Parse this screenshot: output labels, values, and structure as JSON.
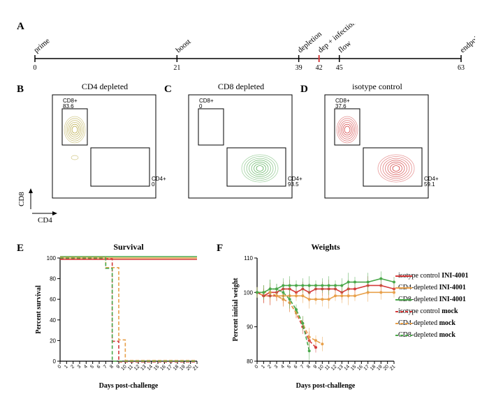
{
  "panelA": {
    "label": "A",
    "timeline": {
      "events": [
        {
          "x": 0,
          "label": "prime"
        },
        {
          "x": 21,
          "label": "boost"
        },
        {
          "x": 39,
          "label": "depletion"
        },
        {
          "x": 42,
          "label": "dep + infection",
          "red": true
        },
        {
          "x": 45,
          "label": "flow"
        },
        {
          "x": 63,
          "label": "endpoint"
        }
      ],
      "min": 0,
      "max": 63
    }
  },
  "panelB": {
    "label": "B",
    "title": "CD4 depleted",
    "cd8_label": "CD8+",
    "cd8_value": "83.6",
    "cd4_label": "CD4+",
    "cd4_value": "0",
    "contour_color": "#b0a030"
  },
  "panelC": {
    "label": "C",
    "title": "CD8 depleted",
    "cd8_label": "CD8+",
    "cd8_value": "0",
    "cd4_label": "CD4+",
    "cd4_value": "93.5",
    "contour_color": "#4aa84a"
  },
  "panelD": {
    "label": "D",
    "title": "isotype control",
    "cd8_label": "CD8+",
    "cd8_value": "37.6",
    "cd4_label": "CD4+",
    "cd4_value": "59.1",
    "contour_color": "#d03030"
  },
  "flow_y_label": "CD8",
  "flow_x_label": "CD4",
  "panelE": {
    "label": "E",
    "title": "Survival",
    "ylabel": "Percent survival",
    "xlabel": "Days post-challenge",
    "ylim": [
      0,
      100
    ],
    "ytick_step": 20,
    "xticks": [
      0,
      1,
      2,
      3,
      4,
      5,
      6,
      7,
      8,
      9,
      10,
      11,
      12,
      13,
      14,
      15,
      16,
      17,
      18,
      19,
      20,
      21
    ],
    "series": [
      {
        "color": "#d43a3a",
        "dash": "solid",
        "data": [
          [
            0,
            100
          ],
          [
            21,
            100
          ]
        ]
      },
      {
        "color": "#e8a04a",
        "dash": "solid",
        "data": [
          [
            0,
            100
          ],
          [
            21,
            100
          ]
        ]
      },
      {
        "color": "#4aa84a",
        "dash": "solid",
        "data": [
          [
            0,
            100
          ],
          [
            21,
            100
          ]
        ]
      },
      {
        "color": "#d43a3a",
        "dash": "dashed",
        "data": [
          [
            0,
            100
          ],
          [
            8,
            100
          ],
          [
            8,
            20
          ],
          [
            9,
            20
          ],
          [
            9,
            0
          ],
          [
            21,
            0
          ]
        ]
      },
      {
        "color": "#e8a04a",
        "dash": "dashed",
        "data": [
          [
            0,
            100
          ],
          [
            7,
            100
          ],
          [
            7,
            90
          ],
          [
            9,
            90
          ],
          [
            9,
            20
          ],
          [
            10,
            20
          ],
          [
            10,
            0
          ],
          [
            21,
            0
          ]
        ]
      },
      {
        "color": "#4aa84a",
        "dash": "dashed",
        "data": [
          [
            0,
            100
          ],
          [
            7,
            100
          ],
          [
            7,
            90
          ],
          [
            8,
            90
          ],
          [
            8,
            0
          ],
          [
            21,
            0
          ]
        ]
      }
    ]
  },
  "panelF": {
    "label": "F",
    "title": "Weights",
    "ylabel": "Percent initial weight",
    "xlabel": "Days post-challenge",
    "ylim": [
      80,
      110
    ],
    "yticks": [
      80,
      90,
      100,
      110
    ],
    "xticks": [
      0,
      1,
      2,
      3,
      4,
      5,
      6,
      7,
      8,
      9,
      10,
      11,
      12,
      13,
      14,
      15,
      16,
      17,
      18,
      19,
      20,
      21
    ],
    "series": [
      {
        "color": "#d43a3a",
        "dash": "solid",
        "markers": true,
        "data": [
          [
            0,
            100
          ],
          [
            1,
            99
          ],
          [
            2,
            100
          ],
          [
            3,
            100
          ],
          [
            4,
            101
          ],
          [
            5,
            101
          ],
          [
            6,
            100
          ],
          [
            7,
            101
          ],
          [
            8,
            100
          ],
          [
            9,
            101
          ],
          [
            10,
            101
          ],
          [
            11,
            101
          ],
          [
            12,
            101
          ],
          [
            13,
            100
          ],
          [
            14,
            101
          ],
          [
            15,
            101
          ],
          [
            17,
            102
          ],
          [
            19,
            102
          ],
          [
            21,
            101
          ]
        ]
      },
      {
        "color": "#e8a04a",
        "dash": "solid",
        "markers": true,
        "data": [
          [
            0,
            100
          ],
          [
            1,
            99
          ],
          [
            2,
            99
          ],
          [
            3,
            99
          ],
          [
            4,
            99
          ],
          [
            5,
            99
          ],
          [
            6,
            99
          ],
          [
            7,
            99
          ],
          [
            8,
            98
          ],
          [
            9,
            98
          ],
          [
            10,
            98
          ],
          [
            11,
            98
          ],
          [
            12,
            99
          ],
          [
            13,
            99
          ],
          [
            14,
            99
          ],
          [
            15,
            99
          ],
          [
            17,
            100
          ],
          [
            19,
            100
          ],
          [
            21,
            100
          ]
        ]
      },
      {
        "color": "#4aa84a",
        "dash": "solid",
        "markers": true,
        "data": [
          [
            0,
            100
          ],
          [
            1,
            100
          ],
          [
            2,
            101
          ],
          [
            3,
            101
          ],
          [
            4,
            102
          ],
          [
            5,
            102
          ],
          [
            6,
            102
          ],
          [
            7,
            102
          ],
          [
            8,
            102
          ],
          [
            9,
            102
          ],
          [
            10,
            102
          ],
          [
            11,
            102
          ],
          [
            12,
            102
          ],
          [
            13,
            102
          ],
          [
            14,
            103
          ],
          [
            15,
            103
          ],
          [
            17,
            103
          ],
          [
            19,
            104
          ],
          [
            21,
            103
          ]
        ]
      },
      {
        "color": "#d43a3a",
        "dash": "dashed",
        "markers": true,
        "data": [
          [
            0,
            100
          ],
          [
            1,
            99
          ],
          [
            2,
            99
          ],
          [
            3,
            99
          ],
          [
            4,
            98
          ],
          [
            5,
            97
          ],
          [
            6,
            94
          ],
          [
            7,
            90
          ],
          [
            8,
            86
          ],
          [
            9,
            84
          ]
        ]
      },
      {
        "color": "#e8a04a",
        "dash": "dashed",
        "markers": true,
        "data": [
          [
            0,
            100
          ],
          [
            1,
            100
          ],
          [
            2,
            100
          ],
          [
            3,
            99
          ],
          [
            4,
            98
          ],
          [
            5,
            97
          ],
          [
            6,
            94
          ],
          [
            7,
            91
          ],
          [
            8,
            87
          ],
          [
            9,
            86
          ],
          [
            10,
            85
          ]
        ]
      },
      {
        "color": "#4aa84a",
        "dash": "dashed",
        "markers": true,
        "data": [
          [
            0,
            100
          ],
          [
            1,
            100
          ],
          [
            2,
            101
          ],
          [
            3,
            101
          ],
          [
            4,
            100
          ],
          [
            5,
            98
          ],
          [
            6,
            95
          ],
          [
            7,
            91
          ],
          [
            8,
            83
          ]
        ]
      }
    ]
  },
  "legend": {
    "items": [
      {
        "color": "#d43a3a",
        "dash": "solid",
        "prefix": "isotype control",
        "suffix": "INI-4001"
      },
      {
        "color": "#e8a04a",
        "dash": "solid",
        "prefix": "CD4-depleted",
        "suffix": "INI-4001"
      },
      {
        "color": "#4aa84a",
        "dash": "solid",
        "prefix": "CD8-depleted",
        "suffix": "INI-4001"
      },
      {
        "color": "#d43a3a",
        "dash": "dashed",
        "prefix": "isotype control",
        "suffix": "mock"
      },
      {
        "color": "#e8a04a",
        "dash": "dashed",
        "prefix": "CD4-depleted",
        "suffix": "mock"
      },
      {
        "color": "#4aa84a",
        "dash": "dashed",
        "prefix": "CD8-depleted",
        "suffix": "mock"
      }
    ]
  },
  "colors": {
    "axis": "#000000",
    "bg": "#ffffff"
  }
}
